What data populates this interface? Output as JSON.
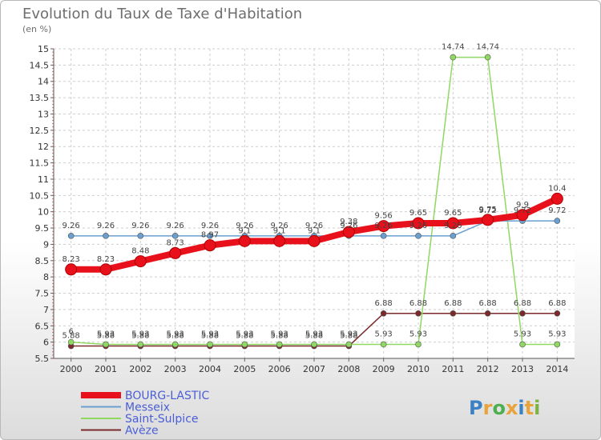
{
  "title": "Evolution du Taux de Taxe d'Habitation",
  "subtitle": "(en %)",
  "brand": {
    "letters": [
      "P",
      "r",
      "o",
      "x",
      "i",
      "t",
      "i"
    ],
    "colors": [
      "#3b82c4",
      "#e8a33a",
      "#4caf50",
      "#e8a33a",
      "#3b82c4",
      "#e8a33a",
      "#7cb342"
    ]
  },
  "chart_data": {
    "type": "line",
    "x": [
      "2000",
      "2001",
      "2002",
      "2003",
      "2004",
      "2005",
      "2006",
      "2007",
      "2008",
      "2009",
      "2010",
      "2011",
      "2012",
      "2013",
      "2014"
    ],
    "ylim": [
      5.5,
      15
    ],
    "yticks": [
      "5.5",
      "6",
      "6.5",
      "7",
      "7.5",
      "8",
      "8.5",
      "9",
      "9.5",
      "10",
      "10.5",
      "11",
      "11.5",
      "12",
      "12.5",
      "13",
      "13.5",
      "14",
      "14.5",
      "15"
    ],
    "grid": "horizontal dashed",
    "legend": "bottom-left",
    "series": [
      {
        "name": "BOURG-LASTIC",
        "color": "#e8101a",
        "values": [
          8.23,
          8.23,
          8.48,
          8.73,
          8.97,
          9.1,
          9.1,
          9.1,
          9.38,
          9.56,
          9.65,
          9.65,
          9.75,
          9.9,
          10.4
        ],
        "labels": [
          "8.23",
          "8.23",
          "8.48",
          "8.73",
          "8.97",
          "9.1",
          "9.1",
          "9.1",
          "9.38",
          "9.56",
          "9.65",
          "9.65",
          "9.75",
          "9.9",
          "10.4"
        ]
      },
      {
        "name": "Messeix",
        "color": "#6b9fcf",
        "values": [
          9.26,
          9.26,
          9.26,
          9.26,
          9.26,
          9.26,
          9.26,
          9.26,
          9.26,
          9.26,
          9.26,
          9.26,
          9.72,
          9.72,
          9.72
        ],
        "labels": [
          "9.26",
          "9.26",
          "9.26",
          "9.26",
          "9.26",
          "9.26",
          "9.26",
          "9.26",
          "9.26",
          "9.26",
          "9.26",
          "9.26",
          "9.72",
          "9.72",
          "9.72"
        ]
      },
      {
        "name": "Saint-Sulpice",
        "color": "#8fd861",
        "values": [
          6,
          5.93,
          5.93,
          5.93,
          5.93,
          5.93,
          5.93,
          5.93,
          5.93,
          5.93,
          5.93,
          14.74,
          14.74,
          5.93,
          5.93
        ],
        "labels": [
          "6",
          "5.93",
          "5.93",
          "5.93",
          "5.93",
          "5.93",
          "5.93",
          "5.93",
          "5.93",
          "5.93",
          "5.93",
          "14.74",
          "14.74",
          "5.93",
          "5.93"
        ]
      },
      {
        "name": "Avèze",
        "color": "#7a2a2a",
        "values": [
          5.88,
          5.88,
          5.88,
          5.88,
          5.88,
          5.88,
          5.88,
          5.88,
          5.88,
          6.88,
          6.88,
          6.88,
          6.88,
          6.88,
          6.88
        ],
        "labels": [
          "5.88",
          "5.88",
          "5.88",
          "5.88",
          "5.88",
          "5.88",
          "5.88",
          "5.88",
          "5.88",
          "6.88",
          "6.88",
          "6.88",
          "6.88",
          "6.88",
          "6.88"
        ]
      }
    ]
  }
}
